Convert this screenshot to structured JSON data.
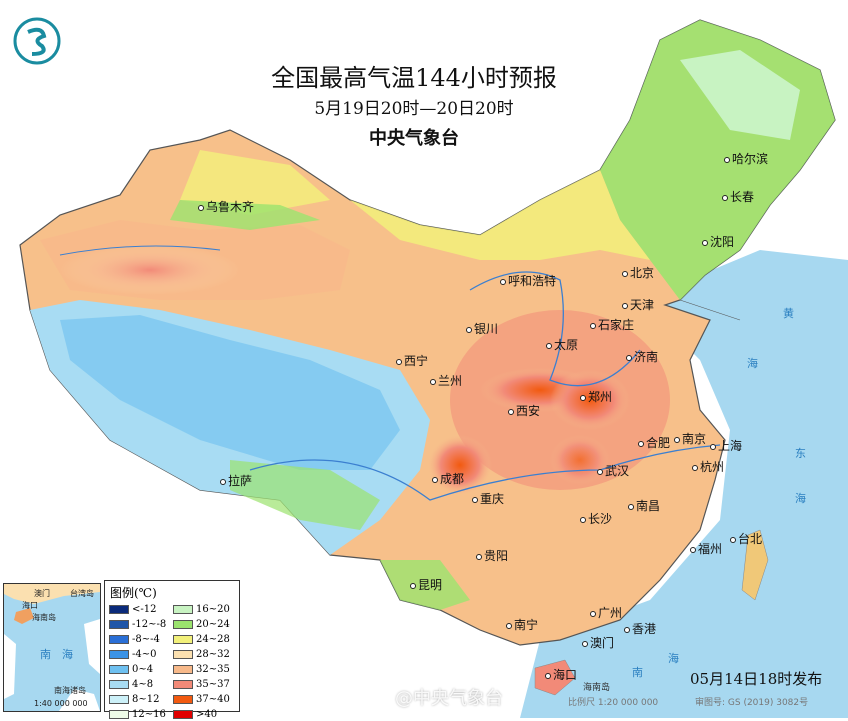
{
  "header": {
    "title": "全国最高气温144小时预报",
    "period": "5月19日20时—20日20时",
    "issuer": "中央气象台",
    "logo": "cma-logo-icon"
  },
  "cities": [
    "乌鲁木齐",
    "哈尔滨",
    "长春",
    "沈阳",
    "呼和浩特",
    "北京",
    "天津",
    "银川",
    "石家庄",
    "太原",
    "济南",
    "西宁",
    "兰州",
    "郑州",
    "西安",
    "合肥",
    "南京",
    "上海",
    "杭州",
    "成都",
    "武汉",
    "重庆",
    "拉萨",
    "南昌",
    "长沙",
    "福州",
    "台北",
    "贵阳",
    "昆明",
    "广州",
    "南宁",
    "澳门",
    "香港",
    "海口"
  ],
  "seas": [
    "黄",
    "海",
    "东",
    "海",
    "南",
    "海",
    "海南岛"
  ],
  "legend": {
    "title": "图例(℃)",
    "items": [
      {
        "label": "<-12",
        "color": "#0a2a7a"
      },
      {
        "label": "-12~-8",
        "color": "#1f56a8"
      },
      {
        "label": "-8~-4",
        "color": "#2a6fd6"
      },
      {
        "label": "-4~0",
        "color": "#3b93e6"
      },
      {
        "label": "0~4",
        "color": "#6ec0f0"
      },
      {
        "label": "4~8",
        "color": "#a8dcf3"
      },
      {
        "label": "8~12",
        "color": "#ccf0f8"
      },
      {
        "label": "12~16",
        "color": "#eefce8"
      },
      {
        "label": "16~20",
        "color": "#c8f3c2"
      },
      {
        "label": "20~24",
        "color": "#9be36e"
      },
      {
        "label": "24~28",
        "color": "#f2f07a"
      },
      {
        "label": "28~32",
        "color": "#fbe0b0"
      },
      {
        "label": "32~35",
        "color": "#f7b98a"
      },
      {
        "label": "35~37",
        "color": "#f28a78"
      },
      {
        "label": "37~40",
        "color": "#f25a10"
      },
      {
        "label": ">40",
        "color": "#e00000"
      }
    ]
  },
  "inset": {
    "labels": [
      "澳门",
      "台湾岛",
      "海口",
      "海南岛",
      "南",
      "海",
      "南海诸岛"
    ],
    "scale": "1:40 000 000"
  },
  "footer": {
    "issued": "05月14日18时发布",
    "scale": "比例尺 1:20 000 000",
    "approval": "审图号: GS (2019) 3082号",
    "watermark": "@中央气象台"
  }
}
